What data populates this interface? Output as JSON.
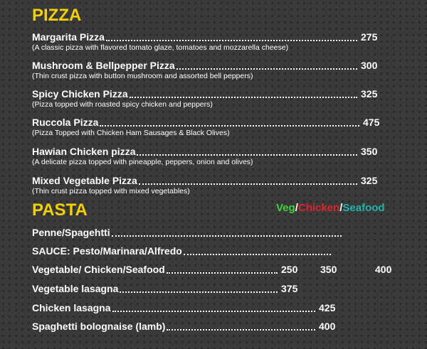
{
  "pizza": {
    "title": "PIZZA",
    "items": [
      {
        "name": "Margarita Pizza",
        "price": 275,
        "description": "(A classic pizza with flavored tomato glaze, tomatoes and mozzarella cheese)"
      },
      {
        "name": "Mushroom & Bellpepper Pizza",
        "price": 300,
        "description": "(Thin crust pizza with button mushroom and assorted bell peppers)"
      },
      {
        "name": "Spicy Chicken Pizza",
        "price": 325,
        "description": "(Pizza topped with roasted spicy chicken and peppers)"
      },
      {
        "name": "Ruccola Pizza",
        "price": 475,
        "description": "(Pizza Topped with Chicken Ham Sausages & Black Olives)"
      },
      {
        "name": "Hawian Chicken pizza",
        "price": 350,
        "description": "(A delicate pizza topped with pineapple, peppers, onion and olives)"
      },
      {
        "name": "Mixed Vegetable Pizza",
        "price": 325,
        "description": "(Thin crust pizza topped with mixed vegetables)"
      }
    ]
  },
  "pasta": {
    "title": "PASTA",
    "options": [
      "Veg",
      "Chicken",
      "Seafood"
    ],
    "separator": "/",
    "items": [
      {
        "name": "Penne/Spagehtti",
        "prices": []
      },
      {
        "name": "SAUCE: Pesto/Marinara/Alfredo",
        "prices": []
      },
      {
        "name": "Vegetable/ Chicken/Seafood",
        "prices": [
          250,
          350,
          400
        ]
      },
      {
        "name": "Vegetable lasagna",
        "prices": [
          375
        ]
      },
      {
        "name": "Chicken lasagna",
        "prices": [
          425
        ]
      },
      {
        "name": "Spaghetti bolognaise (lamb)",
        "prices": [
          400
        ]
      }
    ]
  }
}
